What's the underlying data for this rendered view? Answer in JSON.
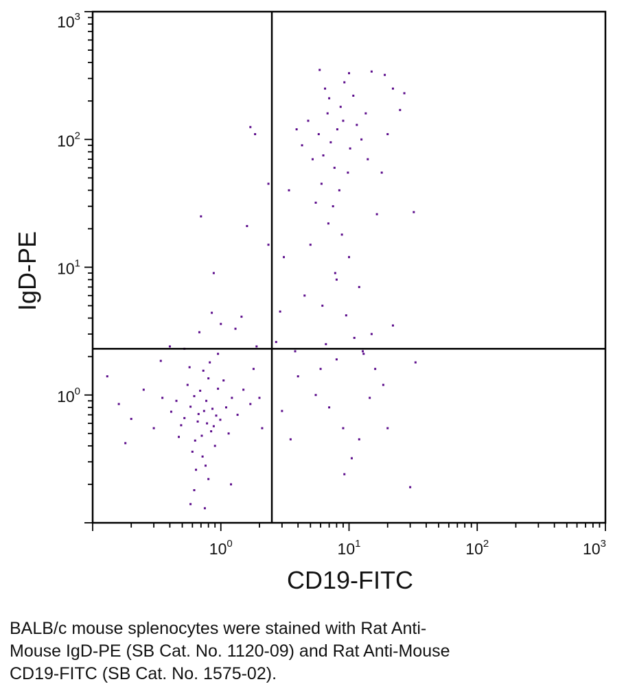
{
  "chart_data": {
    "type": "scatter",
    "title": "",
    "xlabel": "CD19-FITC",
    "ylabel": "IgD-PE",
    "x_scale": "log",
    "y_scale": "log",
    "xlim": [
      0.1,
      1000
    ],
    "ylim": [
      0.1,
      1000
    ],
    "x_ticks": [
      {
        "base": "10",
        "exp": "0",
        "value": 1
      },
      {
        "base": "10",
        "exp": "1",
        "value": 10
      },
      {
        "base": "10",
        "exp": "2",
        "value": 100
      },
      {
        "base": "10",
        "exp": "3",
        "value": 1000
      }
    ],
    "y_ticks": [
      {
        "base": "10",
        "exp": "0",
        "value": 1
      },
      {
        "base": "10",
        "exp": "1",
        "value": 10
      },
      {
        "base": "10",
        "exp": "2",
        "value": 100
      },
      {
        "base": "10",
        "exp": "3",
        "value": 1000
      }
    ],
    "gates": {
      "x": 2.5,
      "y": 2.3
    },
    "point_color": "#5a0a8a",
    "series": [
      {
        "values": [
          [
            0.74,
            0.75
          ],
          [
            0.62,
            0.98
          ],
          [
            0.88,
            0.57
          ],
          [
            0.52,
            0.66
          ],
          [
            0.95,
            1.12
          ],
          [
            0.71,
            0.48
          ],
          [
            0.45,
            0.9
          ],
          [
            1.1,
            0.8
          ],
          [
            0.8,
            1.35
          ],
          [
            0.66,
            0.62
          ],
          [
            0.58,
            0.81
          ],
          [
            0.92,
            0.69
          ],
          [
            0.77,
            0.9
          ],
          [
            0.69,
            1.08
          ],
          [
            0.84,
            0.52
          ],
          [
            0.63,
            0.44
          ],
          [
            1.22,
            0.95
          ],
          [
            0.49,
            0.58
          ],
          [
            0.73,
            1.55
          ],
          [
            0.99,
            0.64
          ],
          [
            0.55,
            1.2
          ],
          [
            0.86,
            0.78
          ],
          [
            0.67,
            0.71
          ],
          [
            0.78,
            0.6
          ],
          [
            1.05,
            1.3
          ],
          [
            0.41,
            0.74
          ],
          [
            0.6,
            0.36
          ],
          [
            0.9,
            0.4
          ],
          [
            0.72,
            0.33
          ],
          [
            1.35,
            0.7
          ],
          [
            0.35,
            0.95
          ],
          [
            1.5,
            1.1
          ],
          [
            0.82,
            1.8
          ],
          [
            0.57,
            1.65
          ],
          [
            1.15,
            0.5
          ],
          [
            0.47,
            0.47
          ],
          [
            0.76,
            0.28
          ],
          [
            0.64,
            0.26
          ],
          [
            0.3,
            0.55
          ],
          [
            1.7,
            0.85
          ],
          [
            0.95,
            2.1
          ],
          [
            0.52,
            2.3
          ],
          [
            0.68,
            3.1
          ],
          [
            1.0,
            3.6
          ],
          [
            1.8,
            1.6
          ],
          [
            0.25,
            1.1
          ],
          [
            0.2,
            0.65
          ],
          [
            0.16,
            0.85
          ],
          [
            0.13,
            1.4
          ],
          [
            0.18,
            0.42
          ],
          [
            0.8,
            0.22
          ],
          [
            0.62,
            0.18
          ],
          [
            0.58,
            0.14
          ],
          [
            0.75,
            0.13
          ],
          [
            1.2,
            0.2
          ],
          [
            2.0,
            0.95
          ],
          [
            2.1,
            0.55
          ],
          [
            1.9,
            2.4
          ],
          [
            0.7,
            25.0
          ],
          [
            0.88,
            9.0
          ],
          [
            1.6,
            21.0
          ],
          [
            1.85,
            110.0
          ],
          [
            1.7,
            125.0
          ],
          [
            2.35,
            45.0
          ],
          [
            2.35,
            15.0
          ],
          [
            1.3,
            3.3
          ],
          [
            0.4,
            2.4
          ],
          [
            0.34,
            1.85
          ],
          [
            1.45,
            4.1
          ],
          [
            0.85,
            4.4
          ],
          [
            7.2,
            95.0
          ],
          [
            8.1,
            120.0
          ],
          [
            6.3,
            75.0
          ],
          [
            9.0,
            140.0
          ],
          [
            5.8,
            110.0
          ],
          [
            7.7,
            60.0
          ],
          [
            6.8,
            160.0
          ],
          [
            10.2,
            85.0
          ],
          [
            8.6,
            180.0
          ],
          [
            5.2,
            70.0
          ],
          [
            7.0,
            210.0
          ],
          [
            9.8,
            55.0
          ],
          [
            6.1,
            45.0
          ],
          [
            11.5,
            130.0
          ],
          [
            4.8,
            140.0
          ],
          [
            8.4,
            40.0
          ],
          [
            12.5,
            100.0
          ],
          [
            6.5,
            250.0
          ],
          [
            10.8,
            220.0
          ],
          [
            4.3,
            90.0
          ],
          [
            7.5,
            30.0
          ],
          [
            5.5,
            32.0
          ],
          [
            13.5,
            160.0
          ],
          [
            9.2,
            280.0
          ],
          [
            3.9,
            120.0
          ],
          [
            14.0,
            70.0
          ],
          [
            6.9,
            22.0
          ],
          [
            8.8,
            18.0
          ],
          [
            5.0,
            15.0
          ],
          [
            10.0,
            12.0
          ],
          [
            7.8,
            9.0
          ],
          [
            12.0,
            7.0
          ],
          [
            4.5,
            6.0
          ],
          [
            6.2,
            5.0
          ],
          [
            9.5,
            4.2
          ],
          [
            15.0,
            3.0
          ],
          [
            11.0,
            2.8
          ],
          [
            16.5,
            26.0
          ],
          [
            18.0,
            55.0
          ],
          [
            20.0,
            110.0
          ],
          [
            22.0,
            250.0
          ],
          [
            25.0,
            170.0
          ],
          [
            3.4,
            40.0
          ],
          [
            3.1,
            12.0
          ],
          [
            2.9,
            4.5
          ],
          [
            4.0,
            1.4
          ],
          [
            5.5,
            1.0
          ],
          [
            7.0,
            0.8
          ],
          [
            9.0,
            0.55
          ],
          [
            12.0,
            0.45
          ],
          [
            14.5,
            0.95
          ],
          [
            16.0,
            1.6
          ],
          [
            13.0,
            2.1
          ],
          [
            8.0,
            1.9
          ],
          [
            6.0,
            1.6
          ],
          [
            10.5,
            0.32
          ],
          [
            9.2,
            0.24
          ],
          [
            3.0,
            0.75
          ],
          [
            3.5,
            0.45
          ],
          [
            30.0,
            0.19
          ],
          [
            20.0,
            0.55
          ],
          [
            18.5,
            1.2
          ],
          [
            22.0,
            3.5
          ],
          [
            32.0,
            27.0
          ],
          [
            33.0,
            1.8
          ],
          [
            2.7,
            2.6
          ],
          [
            3.8,
            2.2
          ],
          [
            6.6,
            2.5
          ],
          [
            12.8,
            2.2
          ],
          [
            5.9,
            350.0
          ],
          [
            10.0,
            330.0
          ],
          [
            15.0,
            340.0
          ],
          [
            27.0,
            230.0
          ],
          [
            19.0,
            320.0
          ],
          [
            8.0,
            8.0
          ]
        ]
      }
    ]
  },
  "caption": {
    "lines": [
      "BALB/c mouse splenocytes were stained with Rat Anti-",
      "Mouse IgD-PE (SB Cat. No. 1120-09) and Rat Anti-Mouse",
      "CD19-FITC (SB Cat. No. 1575-02)."
    ]
  }
}
